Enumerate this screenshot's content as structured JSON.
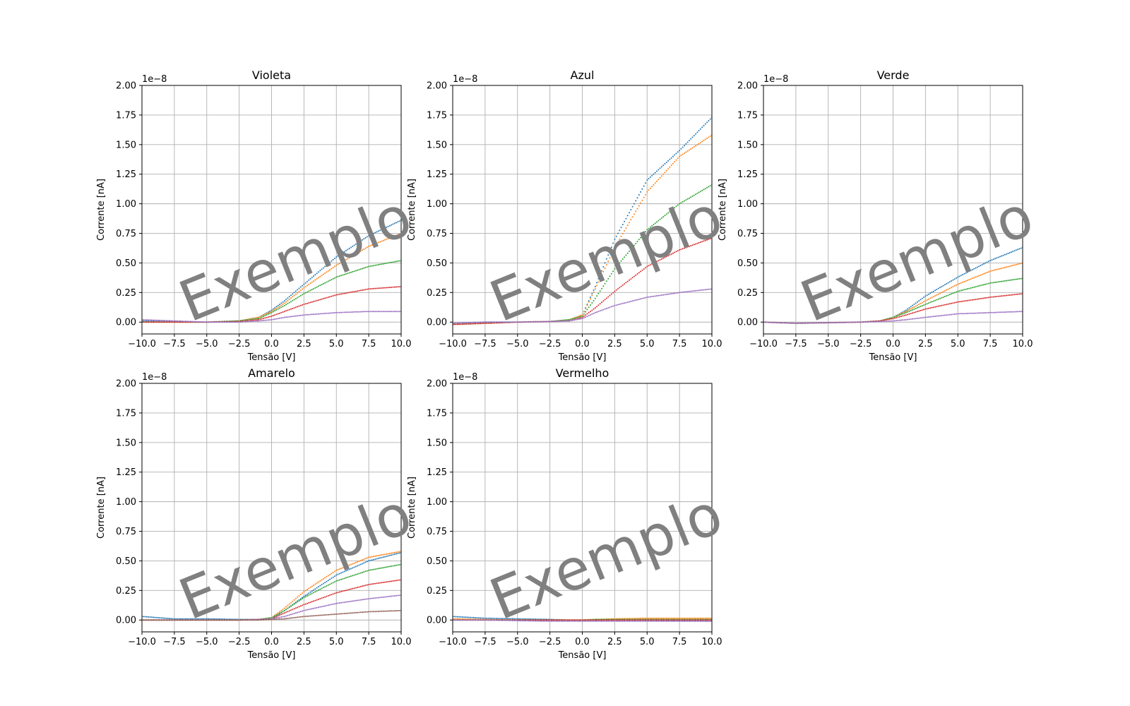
{
  "watermark": "Exemplo",
  "colors": {
    "series": [
      "#1f77b4",
      "#ff7f0e",
      "#2ca02c",
      "#d62728",
      "#9467bd",
      "#8c564b"
    ],
    "grid": "#b0b0b0",
    "watermark": "#808080"
  },
  "chart_data": [
    {
      "type": "scatter",
      "title": "Violeta",
      "xlabel": "Tensão [V]",
      "ylabel": "Corrente [nA]",
      "offset_text": "1e−8",
      "xlim": [
        -10,
        10
      ],
      "ylim": [
        -0.1,
        2.0
      ],
      "xticks": [
        "−10.0",
        "−7.5",
        "−5.0",
        "−2.5",
        "0.0",
        "2.5",
        "5.0",
        "7.5",
        "10.0"
      ],
      "yticks": [
        "0.00",
        "0.25",
        "0.50",
        "0.75",
        "1.00",
        "1.25",
        "1.50",
        "1.75",
        "2.00"
      ],
      "grid": true,
      "x": [
        -10,
        -7.5,
        -5,
        -2.5,
        -1,
        0,
        1,
        2.5,
        5,
        7.5,
        10
      ],
      "series": [
        {
          "values": [
            0.01,
            0.005,
            0.0,
            0.01,
            0.04,
            0.1,
            0.18,
            0.32,
            0.55,
            0.73,
            0.86
          ]
        },
        {
          "values": [
            0.0,
            0.0,
            0.0,
            0.01,
            0.04,
            0.09,
            0.16,
            0.29,
            0.48,
            0.64,
            0.75
          ]
        },
        {
          "values": [
            0.0,
            0.0,
            0.0,
            0.01,
            0.03,
            0.08,
            0.14,
            0.24,
            0.38,
            0.47,
            0.52
          ]
        },
        {
          "values": [
            0.0,
            0.0,
            0.0,
            0.005,
            0.02,
            0.05,
            0.09,
            0.15,
            0.23,
            0.28,
            0.3
          ]
        },
        {
          "values": [
            0.02,
            0.01,
            0.0,
            0.0,
            0.01,
            0.02,
            0.04,
            0.06,
            0.08,
            0.09,
            0.09
          ]
        }
      ]
    },
    {
      "type": "scatter",
      "title": "Azul",
      "xlabel": "Tensão [V]",
      "ylabel": "Corrente [nA]",
      "offset_text": "1e−8",
      "xlim": [
        -10,
        10
      ],
      "ylim": [
        -0.1,
        2.0
      ],
      "xticks": [
        "−10.0",
        "−7.5",
        "−5.0",
        "−2.5",
        "0.0",
        "2.5",
        "5.0",
        "7.5",
        "10.0"
      ],
      "yticks": [
        "0.00",
        "0.25",
        "0.50",
        "0.75",
        "1.00",
        "1.25",
        "1.50",
        "1.75",
        "2.00"
      ],
      "grid": true,
      "x": [
        -10,
        -7.5,
        -5,
        -2.5,
        -1,
        0,
        1,
        2.5,
        5,
        7.5,
        10
      ],
      "series": [
        {
          "values": [
            -0.01,
            0.0,
            0.0,
            0.005,
            0.02,
            0.06,
            0.3,
            0.7,
            1.2,
            1.45,
            1.73
          ]
        },
        {
          "values": [
            -0.02,
            -0.01,
            0.0,
            0.005,
            0.02,
            0.06,
            0.28,
            0.63,
            1.1,
            1.4,
            1.58
          ]
        },
        {
          "values": [
            -0.02,
            -0.01,
            0.0,
            0.005,
            0.02,
            0.05,
            0.2,
            0.45,
            0.78,
            1.0,
            1.16
          ]
        },
        {
          "values": [
            -0.02,
            -0.01,
            0.0,
            0.005,
            0.01,
            0.04,
            0.12,
            0.26,
            0.47,
            0.61,
            0.71
          ]
        },
        {
          "values": [
            -0.01,
            0.0,
            0.0,
            0.005,
            0.01,
            0.03,
            0.08,
            0.14,
            0.21,
            0.25,
            0.28
          ]
        }
      ]
    },
    {
      "type": "scatter",
      "title": "Verde",
      "xlabel": "Tensão [V]",
      "ylabel": "Corrente [nA]",
      "offset_text": "1e−8",
      "xlim": [
        -10,
        10
      ],
      "ylim": [
        -0.1,
        2.0
      ],
      "xticks": [
        "−10.0",
        "−7.5",
        "−5.0",
        "−2.5",
        "0.0",
        "2.5",
        "5.0",
        "7.5",
        "10.0"
      ],
      "yticks": [
        "0.00",
        "0.25",
        "0.50",
        "0.75",
        "1.00",
        "1.25",
        "1.50",
        "1.75",
        "2.00"
      ],
      "grid": true,
      "x": [
        -10,
        -7.5,
        -5,
        -2.5,
        -1,
        0,
        1,
        2.5,
        5,
        7.5,
        10
      ],
      "series": [
        {
          "values": [
            0.0,
            -0.01,
            -0.005,
            0.0,
            0.01,
            0.04,
            0.1,
            0.22,
            0.38,
            0.52,
            0.63
          ]
        },
        {
          "values": [
            0.0,
            -0.01,
            -0.005,
            0.0,
            0.01,
            0.04,
            0.09,
            0.18,
            0.32,
            0.43,
            0.5
          ]
        },
        {
          "values": [
            0.0,
            -0.01,
            -0.005,
            0.0,
            0.01,
            0.04,
            0.08,
            0.15,
            0.26,
            0.33,
            0.37
          ]
        },
        {
          "values": [
            0.0,
            -0.01,
            -0.005,
            0.0,
            0.01,
            0.03,
            0.06,
            0.11,
            0.17,
            0.21,
            0.24
          ]
        },
        {
          "values": [
            0.0,
            -0.01,
            -0.005,
            0.0,
            0.005,
            0.01,
            0.02,
            0.04,
            0.07,
            0.08,
            0.09
          ]
        }
      ]
    },
    {
      "type": "scatter",
      "title": "Amarelo",
      "xlabel": "Tensão [V]",
      "ylabel": "Corrente [nA]",
      "offset_text": "1e−8",
      "xlim": [
        -10,
        10
      ],
      "ylim": [
        -0.1,
        2.0
      ],
      "xticks": [
        "−10.0",
        "−7.5",
        "−5.0",
        "−2.5",
        "0.0",
        "2.5",
        "5.0",
        "7.5",
        "10.0"
      ],
      "yticks": [
        "0.00",
        "0.25",
        "0.50",
        "0.75",
        "1.00",
        "1.25",
        "1.50",
        "1.75",
        "2.00"
      ],
      "grid": true,
      "x": [
        -10,
        -7.5,
        -5,
        -2.5,
        -1,
        0,
        1,
        2.5,
        5,
        7.5,
        10
      ],
      "series": [
        {
          "values": [
            0.03,
            0.01,
            0.01,
            0.005,
            0.005,
            0.01,
            0.08,
            0.2,
            0.38,
            0.5,
            0.57
          ]
        },
        {
          "values": [
            0.0,
            0.0,
            0.0,
            0.0,
            0.005,
            0.02,
            0.1,
            0.24,
            0.42,
            0.53,
            0.58
          ]
        },
        {
          "values": [
            0.0,
            0.0,
            0.0,
            0.0,
            0.005,
            0.02,
            0.08,
            0.19,
            0.33,
            0.42,
            0.47
          ]
        },
        {
          "values": [
            0.0,
            0.0,
            0.0,
            0.0,
            0.005,
            0.01,
            0.06,
            0.13,
            0.23,
            0.3,
            0.34
          ]
        },
        {
          "values": [
            0.0,
            0.0,
            0.0,
            0.0,
            0.005,
            0.01,
            0.03,
            0.08,
            0.14,
            0.18,
            0.21
          ]
        },
        {
          "values": [
            0.0,
            0.0,
            0.0,
            0.0,
            0.0,
            0.005,
            0.01,
            0.03,
            0.05,
            0.07,
            0.08
          ]
        }
      ]
    },
    {
      "type": "scatter",
      "title": "Vermelho",
      "xlabel": "Tensão [V]",
      "ylabel": "Corrente [nA]",
      "offset_text": "1e−8",
      "xlim": [
        -10,
        10
      ],
      "ylim": [
        -0.1,
        2.0
      ],
      "xticks": [
        "−10.0",
        "−7.5",
        "−5.0",
        "−2.5",
        "0.0",
        "2.5",
        "5.0",
        "7.5",
        "10.0"
      ],
      "yticks": [
        "0.00",
        "0.25",
        "0.50",
        "0.75",
        "1.00",
        "1.25",
        "1.50",
        "1.75",
        "2.00"
      ],
      "grid": true,
      "x": [
        -10,
        -7.5,
        -5,
        -2.5,
        -1,
        0,
        1,
        2.5,
        5,
        7.5,
        10
      ],
      "series": [
        {
          "values": [
            0.03,
            0.015,
            0.01,
            0.005,
            0.0,
            0.0,
            0.0,
            0.0,
            0.0,
            -0.005,
            -0.01
          ]
        },
        {
          "values": [
            0.01,
            0.005,
            0.0,
            0.0,
            0.0,
            0.0,
            0.005,
            0.01,
            0.015,
            0.015,
            0.015
          ]
        },
        {
          "values": [
            0.0,
            0.0,
            0.0,
            0.0,
            0.0,
            0.0,
            0.005,
            0.005,
            0.005,
            0.005,
            0.005
          ]
        },
        {
          "values": [
            0.0,
            0.0,
            0.0,
            0.0,
            0.0,
            0.0,
            0.0,
            0.0,
            0.0,
            0.0,
            0.0
          ]
        },
        {
          "values": [
            0.0,
            0.0,
            -0.005,
            -0.01,
            -0.01,
            -0.01,
            -0.01,
            -0.01,
            -0.01,
            -0.01,
            -0.01
          ]
        }
      ]
    }
  ]
}
